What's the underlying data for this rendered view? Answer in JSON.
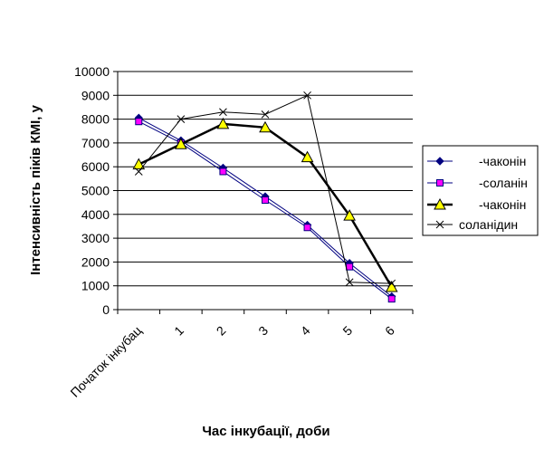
{
  "chart_data": {
    "type": "line",
    "title": "",
    "xlabel": "Час інкубації, доби",
    "ylabel": "Інтенсивність піків КМІ, у",
    "categories": [
      "Початок інкубац",
      "1",
      "2",
      "3",
      "4",
      "5",
      "6"
    ],
    "ylim": [
      0,
      10000
    ],
    "yticks": [
      "0",
      "1000",
      "2000",
      "3000",
      "4000",
      "5000",
      "6000",
      "7000",
      "8000",
      "9000",
      "10000"
    ],
    "grid": true,
    "legend_position": "right",
    "series": [
      {
        "name": "-чаконін",
        "values": [
          8050,
          7100,
          5950,
          4750,
          3550,
          1950,
          550
        ],
        "color": "#000080",
        "marker": "diamond"
      },
      {
        "name": "-соланін",
        "values": [
          7900,
          7000,
          5800,
          4600,
          3450,
          1800,
          450
        ],
        "color": "#000080",
        "marker": "square",
        "markerColor": "#ff00ff"
      },
      {
        "name": "-чаконін",
        "values": [
          6100,
          6950,
          7800,
          7650,
          6400,
          3950,
          950
        ],
        "color": "#000000",
        "marker": "triangle",
        "markerColor": "#ffff00"
      },
      {
        "name": "соланідин",
        "values": [
          5800,
          8000,
          8300,
          8200,
          9000,
          1150,
          1100
        ],
        "color": "#000000",
        "marker": "x"
      }
    ]
  }
}
